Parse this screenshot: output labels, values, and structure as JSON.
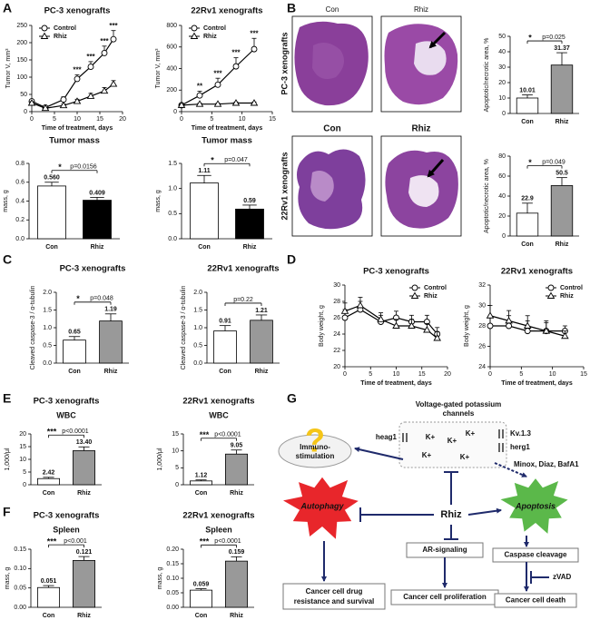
{
  "panel_labels": [
    "A",
    "B",
    "C",
    "D",
    "E",
    "F",
    "G"
  ],
  "histology": {
    "rows": [
      {
        "label": "PC-3 xenografts",
        "columns": [
          "Con",
          "Rhiz"
        ]
      },
      {
        "label": "22Rv1 xenografts",
        "columns": [
          "Con",
          "Rhiz"
        ]
      }
    ]
  },
  "diagram": {
    "channels_title": [
      "Voltage-gated potassium",
      "channels"
    ],
    "channel_labels": [
      "heag1",
      "Kv.1.3",
      "herg1"
    ],
    "ions": [
      "K+",
      "K+",
      "K+",
      "K+",
      "K+"
    ],
    "inhibitors": "Minox, Diaz, BafA1",
    "question": "?",
    "immuno": [
      "Immuno-",
      "stimulation"
    ],
    "autophagy": "Autophagy",
    "apoptosis": "Apoptosis",
    "drug": "Rhiz",
    "ar": "AR-signaling",
    "caspase": "Caspase cleavage",
    "zvad": "zVAD",
    "outcomes": [
      [
        "Cancer cell drug",
        "resistance and survival"
      ],
      "Cancer cell proliferation",
      "Cancer cell death"
    ]
  },
  "chart_data": [
    {
      "type": "line",
      "title": "PC-3 xenografts",
      "xlabel": "Time of treatment, days",
      "ylabel": "Tumor V, mm³",
      "x": [
        0,
        3,
        7,
        10,
        13,
        16,
        18
      ],
      "xlim": [
        0,
        20
      ],
      "xticks": [
        0,
        5,
        10,
        15,
        20
      ],
      "ylim": [
        0,
        250
      ],
      "yticks": [
        0,
        50,
        100,
        150,
        200,
        250
      ],
      "legend": "top-left",
      "series": [
        {
          "name": "Control",
          "color": "#000000",
          "marker": "circle",
          "values": [
            30,
            12,
            35,
            95,
            130,
            170,
            210
          ],
          "errors": [
            5,
            3,
            8,
            12,
            15,
            20,
            25
          ]
        },
        {
          "name": "Rhiz",
          "color": "#000000",
          "marker": "triangle",
          "values": [
            25,
            10,
            18,
            30,
            45,
            60,
            80
          ],
          "errors": [
            4,
            3,
            4,
            6,
            8,
            10,
            10
          ]
        }
      ],
      "significance": [
        null,
        null,
        null,
        "***",
        "***",
        "***",
        "***"
      ]
    },
    {
      "type": "line",
      "title": "22Rv1 xenografts",
      "xlabel": "Time of treatment, days",
      "ylabel": "Tumor V, mm³",
      "x": [
        0,
        3,
        6,
        9,
        12
      ],
      "xlim": [
        0,
        15
      ],
      "xticks": [
        0,
        5,
        10,
        15
      ],
      "ylim": [
        0,
        800
      ],
      "yticks": [
        0,
        200,
        400,
        600,
        800
      ],
      "legend": "top-left",
      "series": [
        {
          "name": "Control",
          "color": "#000000",
          "marker": "circle",
          "values": [
            60,
            150,
            250,
            420,
            580
          ],
          "errors": [
            10,
            40,
            60,
            80,
            100
          ]
        },
        {
          "name": "Rhiz",
          "color": "#000000",
          "marker": "triangle",
          "values": [
            60,
            70,
            70,
            80,
            80
          ],
          "errors": [
            5,
            8,
            8,
            10,
            10
          ]
        }
      ],
      "significance": [
        null,
        "**",
        "***",
        "***",
        "***"
      ]
    },
    {
      "type": "bar",
      "title": "Tumor mass",
      "ylabel": "mass, g",
      "categories": [
        "Con",
        "Rhiz"
      ],
      "values": [
        0.56,
        0.409
      ],
      "value_labels": [
        "0.560",
        "0.409"
      ],
      "errors": [
        0.04,
        0.03
      ],
      "colors": [
        "#ffffff",
        "#000000"
      ],
      "ylim": [
        0,
        0.8
      ],
      "yticks": [
        {
          "value": 0,
          "label": "0.0"
        },
        0.2,
        0.4,
        0.6,
        0.8
      ],
      "significance": "*",
      "p_text": "p=0.0156"
    },
    {
      "type": "bar",
      "title": "Tumor mass",
      "ylabel": "mass, g",
      "categories": [
        "Con",
        "Rhiz"
      ],
      "values": [
        1.11,
        0.59
      ],
      "errors": [
        0.15,
        0.08
      ],
      "colors": [
        "#ffffff",
        "#000000"
      ],
      "ylim": [
        0,
        1.5
      ],
      "yticks": [
        {
          "value": 0,
          "label": "0.0"
        },
        0.5,
        {
          "value": 1,
          "label": "1.0"
        },
        1.5
      ],
      "significance": "*",
      "p_text": "p=0.047"
    },
    {
      "type": "bar",
      "ylabel": "Apoptotic/necrotic area, %",
      "categories": [
        "Con",
        "Rhiz"
      ],
      "values": [
        10.01,
        31.37
      ],
      "errors": [
        2,
        8
      ],
      "colors": [
        "#ffffff",
        "#999999"
      ],
      "ylim": [
        0,
        50
      ],
      "yticks": [
        0,
        10,
        20,
        30,
        40,
        50
      ],
      "significance": "*",
      "p_text": "p=0.025"
    },
    {
      "type": "bar",
      "ylabel": "Apoptotic/necrotic area, %",
      "categories": [
        "Con",
        "Rhiz"
      ],
      "values": [
        22.9,
        50.5
      ],
      "errors": [
        10,
        8
      ],
      "colors": [
        "#ffffff",
        "#999999"
      ],
      "ylim": [
        0,
        80
      ],
      "yticks": [
        0,
        20,
        40,
        60,
        80
      ],
      "significance": "*",
      "p_text": "p=0.049"
    },
    {
      "type": "bar",
      "title": "PC-3 xenografts",
      "ylabel": "Cleaved caspase-3 / α-tubulin",
      "categories": [
        "Con",
        "Rhiz"
      ],
      "values": [
        0.65,
        1.19
      ],
      "errors": [
        0.1,
        0.2
      ],
      "colors": [
        "#ffffff",
        "#999999"
      ],
      "ylim": [
        0,
        2
      ],
      "yticks": [
        {
          "value": 0,
          "label": "0.0"
        },
        0.5,
        {
          "value": 1,
          "label": "1.0"
        },
        1.5,
        {
          "value": 2,
          "label": "2.0"
        }
      ],
      "significance": "*",
      "p_text": "p=0.048"
    },
    {
      "type": "bar",
      "title": "22Rv1 xenografts",
      "ylabel": "Cleaved caspase-3 / α-tubulin",
      "categories": [
        "Con",
        "Rhiz"
      ],
      "values": [
        0.91,
        1.21
      ],
      "errors": [
        0.15,
        0.15
      ],
      "colors": [
        "#ffffff",
        "#999999"
      ],
      "ylim": [
        0,
        2
      ],
      "yticks": [
        {
          "value": 0,
          "label": "0.0"
        },
        0.5,
        {
          "value": 1,
          "label": "1.0"
        },
        1.5,
        {
          "value": 2,
          "label": "2.0"
        }
      ],
      "p_text": "p=0.22"
    },
    {
      "type": "line",
      "title": "PC-3 xenografts",
      "xlabel": "Time of treatment, days",
      "ylabel": "Body weight, g",
      "x": [
        0,
        3,
        7,
        10,
        13,
        16,
        18
      ],
      "xlim": [
        0,
        20
      ],
      "xticks": [
        0,
        5,
        10,
        15,
        20
      ],
      "ylim": [
        20,
        30
      ],
      "yticks": [
        20,
        22,
        24,
        26,
        28,
        30
      ],
      "legend": "top-right",
      "series": [
        {
          "name": "Control",
          "color": "#000000",
          "marker": "circle",
          "values": [
            26,
            27,
            25.5,
            26,
            25.5,
            25.5,
            24
          ],
          "errors": [
            1,
            1,
            0.8,
            0.8,
            0.8,
            0.8,
            0.8
          ]
        },
        {
          "name": "Rhiz",
          "color": "#000000",
          "marker": "triangle",
          "values": [
            26.8,
            27.5,
            25.8,
            25,
            25,
            24.5,
            23.5
          ],
          "errors": [
            1,
            1,
            0.8,
            0.8,
            0.8,
            0.8,
            0.8
          ]
        }
      ]
    },
    {
      "type": "line",
      "title": "22Rv1 xenografts",
      "xlabel": "Time of treatment, days",
      "ylabel": "Body weight, g",
      "x": [
        0,
        3,
        6,
        9,
        12
      ],
      "xlim": [
        0,
        15
      ],
      "xticks": [
        0,
        5,
        10,
        15
      ],
      "ylim": [
        24,
        32
      ],
      "yticks": [
        24,
        26,
        28,
        30,
        32
      ],
      "legend": "top-right",
      "series": [
        {
          "name": "Control",
          "color": "#000000",
          "marker": "circle",
          "values": [
            28,
            28,
            27.5,
            27.5,
            27.5
          ],
          "errors": [
            1,
            1,
            1,
            1,
            0.5
          ]
        },
        {
          "name": "Rhiz",
          "color": "#000000",
          "marker": "triangle",
          "values": [
            29,
            28.5,
            28,
            27.5,
            27
          ],
          "errors": [
            1,
            1,
            1,
            0.8,
            0.5
          ]
        }
      ]
    },
    {
      "type": "bar",
      "title": "PC-3 xenografts",
      "subtitle": "WBC",
      "ylabel": "1,000/μl",
      "categories": [
        "Con",
        "Rhiz"
      ],
      "values": [
        2.42,
        13.4
      ],
      "value_labels": [
        "2.42",
        "13.40"
      ],
      "errors": [
        0.5,
        1.5
      ],
      "colors": [
        "#ffffff",
        "#999999"
      ],
      "ylim": [
        0,
        20
      ],
      "yticks": [
        0,
        5,
        10,
        15,
        20
      ],
      "significance": "***",
      "p_text": "p<0.0001"
    },
    {
      "type": "bar",
      "title": "22Rv1 xenografts",
      "subtitle": "WBC",
      "ylabel": "1,000/μl",
      "categories": [
        "Con",
        "Rhiz"
      ],
      "values": [
        1.12,
        9.05
      ],
      "errors": [
        0.3,
        1.2
      ],
      "colors": [
        "#ffffff",
        "#999999"
      ],
      "ylim": [
        0,
        15
      ],
      "yticks": [
        0,
        5,
        10,
        15
      ],
      "significance": "***",
      "p_text": "p<0.0001"
    },
    {
      "type": "bar",
      "title": "PC-3 xenografts",
      "subtitle": "Spleen",
      "ylabel": "mass, g",
      "categories": [
        "Con",
        "Rhiz"
      ],
      "values": [
        0.051,
        0.121
      ],
      "errors": [
        0.005,
        0.01
      ],
      "colors": [
        "#ffffff",
        "#999999"
      ],
      "ylim": [
        0,
        0.15
      ],
      "yticks": [
        {
          "value": 0,
          "label": "0.00"
        },
        0.05,
        {
          "value": 0.1,
          "label": "0.10"
        },
        0.15
      ],
      "significance": "***",
      "p_text": "p<0.001"
    },
    {
      "type": "bar",
      "title": "22Rv1 xenografts",
      "subtitle": "Spleen",
      "ylabel": "mass, g",
      "categories": [
        "Con",
        "Rhiz"
      ],
      "values": [
        0.059,
        0.159
      ],
      "errors": [
        0.005,
        0.015
      ],
      "colors": [
        "#ffffff",
        "#999999"
      ],
      "ylim": [
        0,
        0.2
      ],
      "yticks": [
        {
          "value": 0,
          "label": "0.00"
        },
        0.05,
        {
          "value": 0.1,
          "label": "0.10"
        },
        0.15,
        {
          "value": 0.2,
          "label": "0.20"
        }
      ],
      "significance": "***",
      "p_text": "p<0.0001"
    }
  ]
}
